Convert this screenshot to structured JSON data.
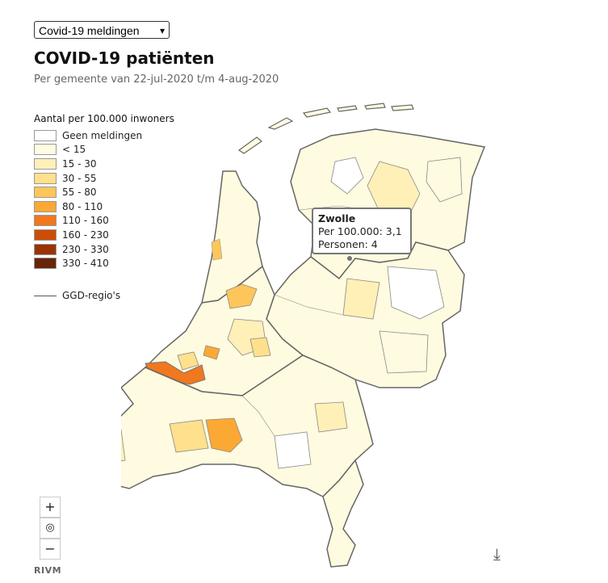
{
  "selector": {
    "value": "Covid-19 meldingen",
    "chevron_icon": "chevron-down-icon"
  },
  "title": "COVID-19 patiënten",
  "subtitle": "Per gemeente van 22-jul-2020 t/m 4-aug-2020",
  "legend": {
    "title": "Aantal per 100.000 inwoners",
    "items": [
      {
        "label": "Geen meldingen",
        "color": "#ffffff"
      },
      {
        "label": "< 15",
        "color": "#fffbe0"
      },
      {
        "label": "15 - 30",
        "color": "#fff0b8"
      },
      {
        "label": "30 - 55",
        "color": "#ffe08c"
      },
      {
        "label": "55 - 80",
        "color": "#fec65a"
      },
      {
        "label": "80 - 110",
        "color": "#fca835"
      },
      {
        "label": "110 - 160",
        "color": "#f0781e"
      },
      {
        "label": "160 - 230",
        "color": "#cc4c08"
      },
      {
        "label": "230 - 330",
        "color": "#993404"
      },
      {
        "label": "330 - 410",
        "color": "#662506"
      }
    ],
    "boundary_label": "GGD-regio's"
  },
  "tooltip": {
    "name": "Zwolle",
    "per100k": "Per 100.000: 3,1",
    "persons": "Personen: 4"
  },
  "controls": {
    "zoom_in": "+",
    "reset": "◎",
    "zoom_out": "−"
  },
  "source": "RIVM",
  "download_icon": "⤓"
}
